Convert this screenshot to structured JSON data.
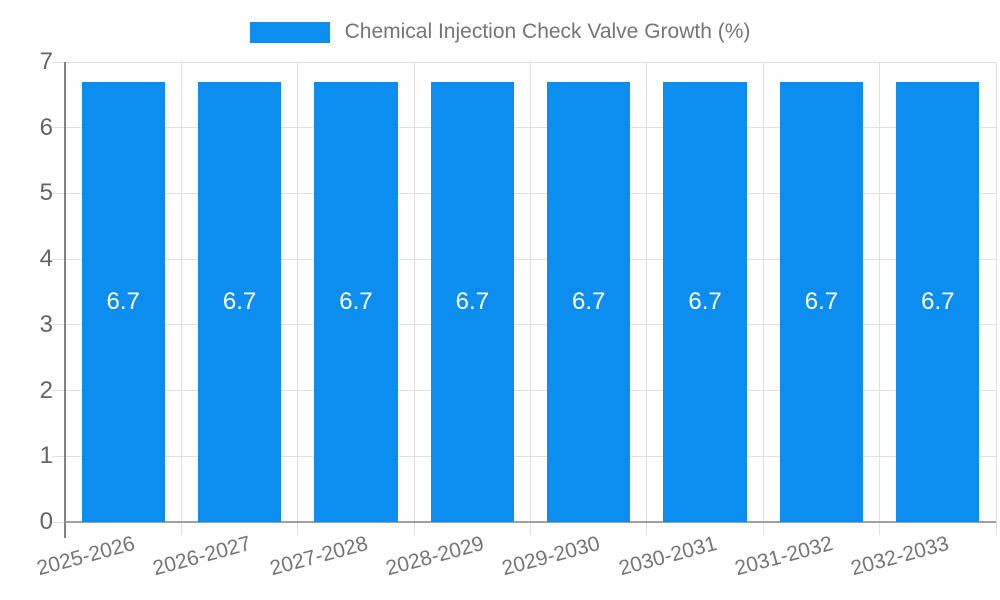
{
  "colors": {
    "bar": "#0b8ef0",
    "grid": "#e0e0e0",
    "y_axis_line": "#828282",
    "x_axis_line": "#a0a0a0",
    "y_tick_text": "#646464",
    "x_tick_text": "#757575",
    "legend_text": "#757575",
    "value_text": "#ffffff",
    "background": "#ffffff"
  },
  "chart_data": {
    "type": "bar",
    "title": "Chemical Injection Check Valve Growth (%)",
    "categories": [
      "2025-2026",
      "2026-2027",
      "2027-2028",
      "2028-2029",
      "2029-2030",
      "2030-2031",
      "2031-2032",
      "2032-2033"
    ],
    "values": [
      6.7,
      6.7,
      6.7,
      6.7,
      6.7,
      6.7,
      6.7,
      6.7
    ],
    "value_labels": [
      "6.7",
      "6.7",
      "6.7",
      "6.7",
      "6.7",
      "6.7",
      "6.7",
      "6.7"
    ],
    "xlabel": "",
    "ylabel": "",
    "ylim": [
      0,
      7
    ],
    "yticks": [
      0,
      1,
      2,
      3,
      4,
      5,
      6,
      7
    ],
    "grid": true,
    "legend_position": "top",
    "bar_width_ratio": 0.715
  }
}
